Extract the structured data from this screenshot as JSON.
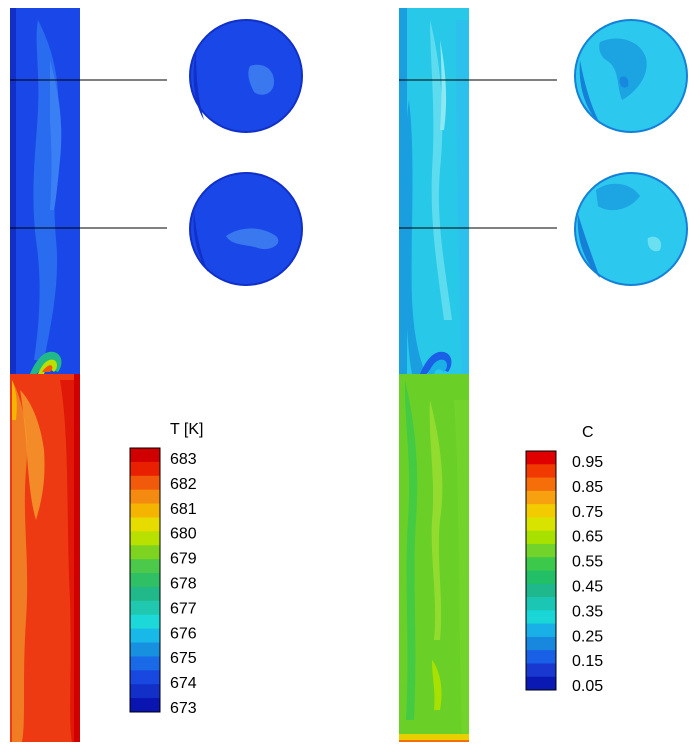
{
  "panels": [
    {
      "id": "temperature",
      "legend": {
        "title": "T [K]",
        "labels": [
          "683",
          "682",
          "681",
          "680",
          "679",
          "678",
          "677",
          "676",
          "675",
          "674",
          "673"
        ],
        "colors": [
          "#d00000",
          "#e82000",
          "#f05a0a",
          "#f58a10",
          "#f4b400",
          "#e6dc00",
          "#b8e000",
          "#7ed321",
          "#4cc94a",
          "#2fbf64",
          "#22b98a",
          "#20c8b0",
          "#1dd8d8",
          "#18b8e8",
          "#1890e0",
          "#1a6ae8",
          "#1848e0",
          "#1230c8",
          "#0a14b0"
        ]
      },
      "column_colors": {
        "top": "#1a48e8",
        "top_streak": "#2a6cf0",
        "bottom": "#ee3a12",
        "bottom_streak": "#f08a28",
        "bottom_edge": "#e01808"
      },
      "sections": [
        {
          "base": "#1a48e8",
          "patch": "#3a78f0",
          "rim": "#1030c8"
        },
        {
          "base": "#1a48e8",
          "patch": "#3a78f0",
          "rim": "#1030c8"
        }
      ]
    },
    {
      "id": "concentration",
      "legend": {
        "title": "C",
        "labels": [
          "0.95",
          "0.85",
          "0.75",
          "0.65",
          "0.55",
          "0.45",
          "0.35",
          "0.25",
          "0.15",
          "0.05"
        ],
        "colors": [
          "#e00000",
          "#f03a00",
          "#f56e0a",
          "#f7a010",
          "#f2cc00",
          "#d8e400",
          "#a8e000",
          "#72d42a",
          "#3cc84a",
          "#22bf66",
          "#1eb88c",
          "#1cc6b4",
          "#1ad6d6",
          "#18b0e6",
          "#1888de",
          "#1a60e6",
          "#1838d0",
          "#0a18b4"
        ]
      },
      "column_colors": {
        "top": "#28c8e8",
        "top_streak": "#6ae0f0",
        "bottom": "#6ad028",
        "bottom_streak": "#9ade30",
        "bottom_edge": "#e8d000"
      },
      "sections": [
        {
          "base": "#2cc8ee",
          "patch": "#1a9ee0",
          "rim": "#1480d8"
        },
        {
          "base": "#2cc8ee",
          "patch": "#1a9ee0",
          "rim": "#1480d8"
        }
      ]
    }
  ]
}
